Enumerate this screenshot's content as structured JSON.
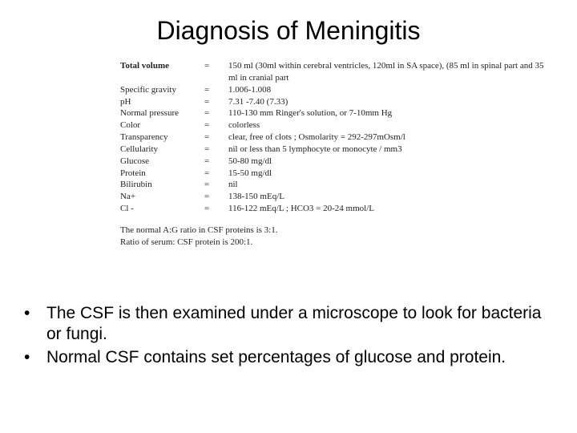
{
  "title": "Diagnosis of Meningitis",
  "table": {
    "rows": [
      {
        "label": "Total volume",
        "eq": "=",
        "value": "150 ml (30ml within cerebral ventricles, 120ml in SA space), (85 ml in spinal part and 35 ml in cranial part",
        "bold": true,
        "multiline": true
      },
      {
        "label": "Specific gravity",
        "eq": "=",
        "value": "1.006-1.008"
      },
      {
        "label": "pH",
        "eq": "=",
        "value": "7.31 -7.40 (7.33)"
      },
      {
        "label": "Normal pressure",
        "eq": "=",
        "value": "110-130 mm Ringer's solution, or 7-10mm Hg"
      },
      {
        "label": "Color",
        "eq": "=",
        "value": "colorless"
      },
      {
        "label": "Transparency",
        "eq": "=",
        "value": "clear,  free of clots ;  Osmolarity = 292-297mOsm/l"
      },
      {
        "label": "Cellularity",
        "eq": "=",
        "value": "nil or less than 5 lymphocyte or monocyte / mm3"
      },
      {
        "label": "Glucose",
        "eq": "=",
        "value": "50-80 mg/dl"
      },
      {
        "label": "Protein",
        "eq": "=",
        "value": "15-50 mg/dl"
      },
      {
        "label": "Bilirubin",
        "eq": "=",
        "value": "nil"
      },
      {
        "label": "Na+",
        "eq": "=",
        "value": "138-150 mEq/L"
      },
      {
        "label": "Cl -",
        "eq": "=",
        "value": "116-122 mEq/L ;      HCO3 = 20-24 mmol/L"
      }
    ],
    "note1": "The normal A:G ratio in CSF proteins is 3:1.",
    "note2": "Ratio of serum: CSF protein is 200:1."
  },
  "bullets": [
    "The CSF is then examined under a microscope to look for bacteria or fungi.",
    "Normal CSF contains set percentages of glucose and protein."
  ],
  "colors": {
    "background": "#ffffff",
    "text": "#000000",
    "table_text": "#222222"
  }
}
